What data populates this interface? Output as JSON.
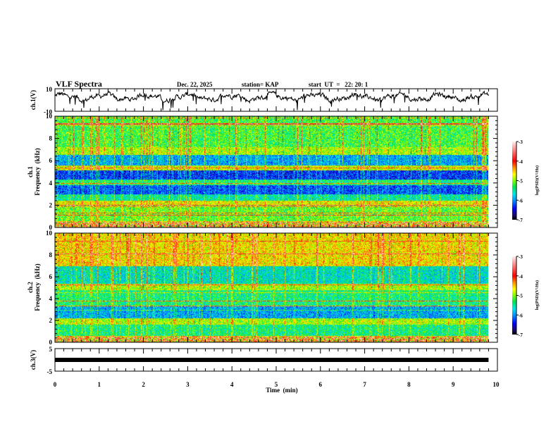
{
  "header": {
    "title": "VLF Spectra",
    "date": "Dec. 22, 2025",
    "station": "station= KAP",
    "start": "start  UT  =   22: 20: 1"
  },
  "chart_data": [
    {
      "type": "line",
      "name": "ch1-waveform",
      "ylabel": "ch.1(V)",
      "ylim": [
        -10,
        10
      ],
      "yticks": [
        "10",
        "-10"
      ],
      "xlim": [
        0,
        10
      ],
      "data_end_min": 9.8,
      "mean_value": 2.5,
      "series_color": "#000000"
    },
    {
      "type": "heatmap",
      "name": "ch1-spectrogram",
      "ylabel_line1": "ch.1",
      "ylabel_line2": "Frequency  (kHz)",
      "ylim": [
        0,
        10
      ],
      "yticks": [
        "0",
        "2",
        "4",
        "6",
        "8",
        "10"
      ],
      "xlim": [
        0,
        10
      ],
      "data_end_min": 9.8,
      "band_profile_khz": [
        {
          "from": 0,
          "to": 0.6,
          "level": -4.6
        },
        {
          "from": 0.6,
          "to": 2.0,
          "level": -5.1
        },
        {
          "from": 2.0,
          "to": 2.4,
          "level": -4.7
        },
        {
          "from": 2.4,
          "to": 3.0,
          "level": -5.5
        },
        {
          "from": 3.0,
          "to": 3.8,
          "level": -6.2
        },
        {
          "from": 3.8,
          "to": 4.3,
          "level": -5.4
        },
        {
          "from": 4.3,
          "to": 5.1,
          "level": -6.3
        },
        {
          "from": 5.1,
          "to": 5.6,
          "level": -4.8
        },
        {
          "from": 5.6,
          "to": 6.5,
          "level": -5.9
        },
        {
          "from": 6.5,
          "to": 7.2,
          "level": -4.9
        },
        {
          "from": 7.2,
          "to": 10,
          "level": -5.2
        }
      ]
    },
    {
      "type": "heatmap",
      "name": "ch2-spectrogram",
      "ylabel_line1": "ch.2",
      "ylabel_line2": "Frequency  (kHz)",
      "ylim": [
        0,
        10
      ],
      "yticks": [
        "0",
        "2",
        "4",
        "6",
        "8",
        "10"
      ],
      "xlim": [
        0,
        10
      ],
      "data_end_min": 9.8,
      "band_profile_khz": [
        {
          "from": 0,
          "to": 0.6,
          "level": -4.6
        },
        {
          "from": 0.6,
          "to": 1.6,
          "level": -5.4
        },
        {
          "from": 1.6,
          "to": 2.2,
          "level": -4.9
        },
        {
          "from": 2.2,
          "to": 3.3,
          "level": -5.9
        },
        {
          "from": 3.3,
          "to": 4.8,
          "level": -5.4
        },
        {
          "from": 4.8,
          "to": 5.3,
          "level": -4.9
        },
        {
          "from": 5.3,
          "to": 7.0,
          "level": -5.6
        },
        {
          "from": 7.0,
          "to": 10,
          "level": -4.6
        }
      ]
    },
    {
      "type": "line",
      "name": "ch3-waveform",
      "ylabel": "ch.3(V)",
      "ylim": [
        -5,
        5
      ],
      "yticks": [
        "5",
        "-5"
      ],
      "xlim": [
        0,
        10
      ],
      "data_end_min": 9.8,
      "value": 0,
      "series_color": "#000000"
    }
  ],
  "xaxis": {
    "label": "Time  (min)",
    "ticks": [
      "0",
      "1",
      "2",
      "3",
      "4",
      "5",
      "6",
      "7",
      "8",
      "9",
      "10"
    ]
  },
  "colorbar": {
    "label": "log(PSD)(V²/Hz)",
    "ticks": [
      "-3",
      "-4",
      "-5",
      "-6",
      "-7"
    ],
    "range": [
      -7,
      -3
    ]
  }
}
